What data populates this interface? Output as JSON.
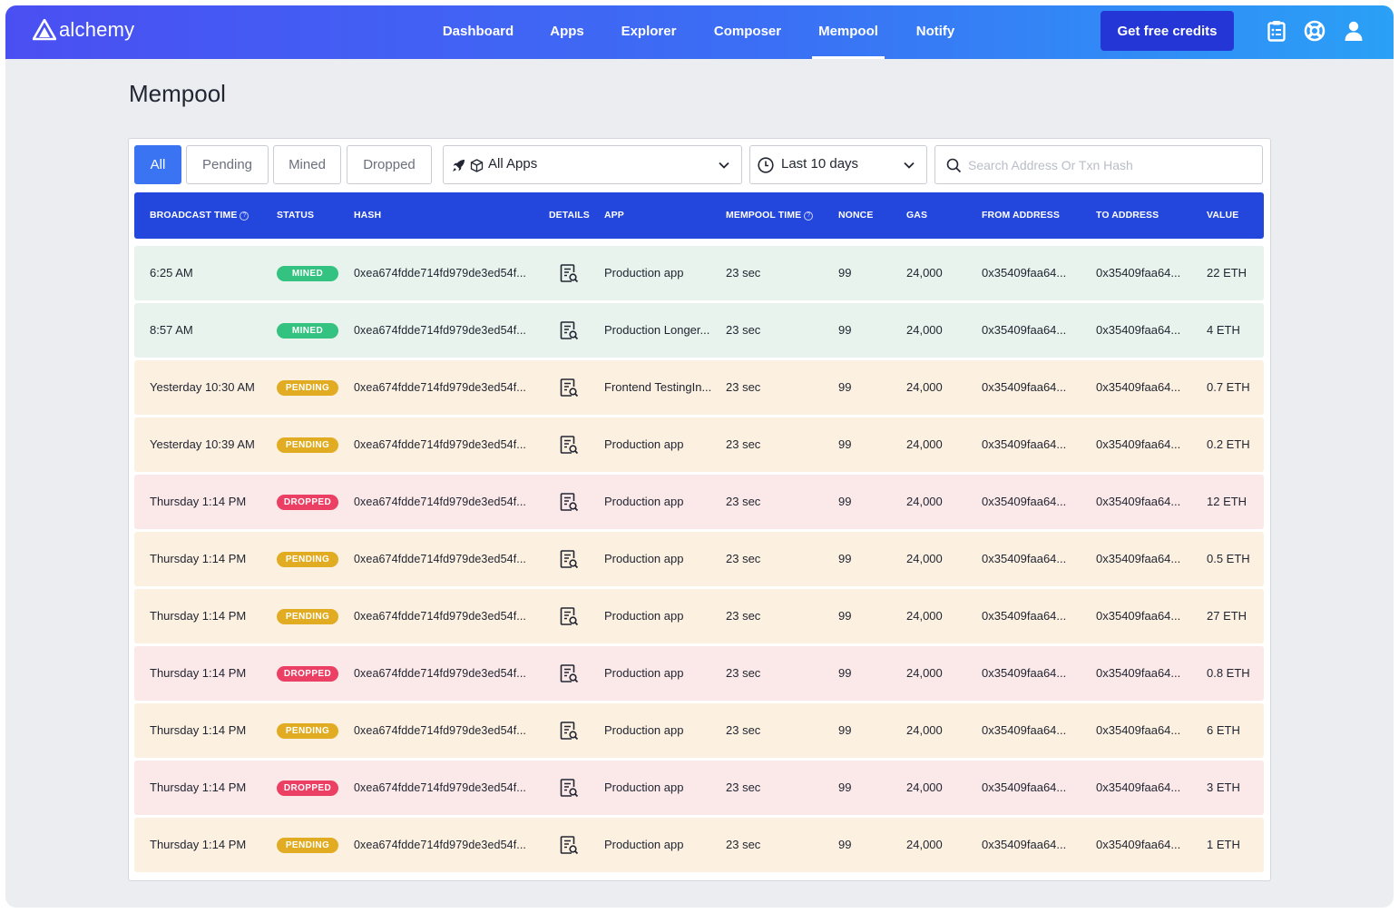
{
  "brand": {
    "name": "alchemy"
  },
  "nav": {
    "items": [
      {
        "label": "Dashboard"
      },
      {
        "label": "Apps"
      },
      {
        "label": "Explorer"
      },
      {
        "label": "Composer"
      },
      {
        "label": "Mempool",
        "active": true
      },
      {
        "label": "Notify"
      }
    ],
    "cta": "Get free credits",
    "icons": [
      "clipboard-icon",
      "lifebuoy-icon",
      "user-icon"
    ]
  },
  "page": {
    "title": "Mempool"
  },
  "filters": {
    "status_tabs": [
      {
        "label": "All",
        "active": true
      },
      {
        "label": "Pending"
      },
      {
        "label": "Mined"
      },
      {
        "label": "Dropped"
      }
    ],
    "app_select": "All Apps",
    "time_select": "Last 10 days",
    "search_placeholder": "Search Address Or Txn Hash"
  },
  "colors": {
    "header": "#2346dc",
    "mined": "#33c27f",
    "pending": "#e2ac22",
    "dropped": "#ec3f64"
  },
  "table": {
    "columns": [
      {
        "label": "BROADCAST TIME",
        "help": true
      },
      {
        "label": "STATUS"
      },
      {
        "label": "HASH"
      },
      {
        "label": "DETAILS"
      },
      {
        "label": "APP"
      },
      {
        "label": "MEMPOOL TIME",
        "help": true
      },
      {
        "label": "NONCE"
      },
      {
        "label": "GAS"
      },
      {
        "label": "FROM ADDRESS"
      },
      {
        "label": "TO ADDRESS"
      },
      {
        "label": "VALUE"
      }
    ],
    "rows": [
      {
        "time": "6:25 AM",
        "status": "MINED",
        "hash": "0xea674fdde714fd979de3ed54f...",
        "app": "Production app",
        "mempool_time": "23 sec",
        "nonce": "99",
        "gas": "24,000",
        "from": "0x35409faa64...",
        "to": "0x35409faa64...",
        "value": "22 ETH"
      },
      {
        "time": "8:57 AM",
        "status": "MINED",
        "hash": "0xea674fdde714fd979de3ed54f...",
        "app": "Production Longer...",
        "mempool_time": "23 sec",
        "nonce": "99",
        "gas": "24,000",
        "from": "0x35409faa64...",
        "to": "0x35409faa64...",
        "value": "4 ETH"
      },
      {
        "time": "Yesterday 10:30 AM",
        "status": "PENDING",
        "hash": "0xea674fdde714fd979de3ed54f...",
        "app": "Frontend TestingIn...",
        "mempool_time": "23 sec",
        "nonce": "99",
        "gas": "24,000",
        "from": "0x35409faa64...",
        "to": "0x35409faa64...",
        "value": "0.7 ETH"
      },
      {
        "time": "Yesterday 10:39 AM",
        "status": "PENDING",
        "hash": "0xea674fdde714fd979de3ed54f...",
        "app": "Production app",
        "mempool_time": "23 sec",
        "nonce": "99",
        "gas": "24,000",
        "from": "0x35409faa64...",
        "to": "0x35409faa64...",
        "value": "0.2 ETH"
      },
      {
        "time": "Thursday 1:14 PM",
        "status": "DROPPED",
        "hash": "0xea674fdde714fd979de3ed54f...",
        "app": "Production app",
        "mempool_time": "23 sec",
        "nonce": "99",
        "gas": "24,000",
        "from": "0x35409faa64...",
        "to": "0x35409faa64...",
        "value": "12 ETH"
      },
      {
        "time": "Thursday 1:14 PM",
        "status": "PENDING",
        "hash": "0xea674fdde714fd979de3ed54f...",
        "app": "Production app",
        "mempool_time": "23 sec",
        "nonce": "99",
        "gas": "24,000",
        "from": "0x35409faa64...",
        "to": "0x35409faa64...",
        "value": "0.5 ETH"
      },
      {
        "time": "Thursday 1:14 PM",
        "status": "PENDING",
        "hash": "0xea674fdde714fd979de3ed54f...",
        "app": "Production app",
        "mempool_time": "23 sec",
        "nonce": "99",
        "gas": "24,000",
        "from": "0x35409faa64...",
        "to": "0x35409faa64...",
        "value": "27 ETH"
      },
      {
        "time": "Thursday 1:14 PM",
        "status": "DROPPED",
        "hash": "0xea674fdde714fd979de3ed54f...",
        "app": "Production app",
        "mempool_time": "23 sec",
        "nonce": "99",
        "gas": "24,000",
        "from": "0x35409faa64...",
        "to": "0x35409faa64...",
        "value": "0.8 ETH"
      },
      {
        "time": "Thursday 1:14 PM",
        "status": "PENDING",
        "hash": "0xea674fdde714fd979de3ed54f...",
        "app": "Production app",
        "mempool_time": "23 sec",
        "nonce": "99",
        "gas": "24,000",
        "from": "0x35409faa64...",
        "to": "0x35409faa64...",
        "value": "6 ETH"
      },
      {
        "time": "Thursday 1:14 PM",
        "status": "DROPPED",
        "hash": "0xea674fdde714fd979de3ed54f...",
        "app": "Production app",
        "mempool_time": "23 sec",
        "nonce": "99",
        "gas": "24,000",
        "from": "0x35409faa64...",
        "to": "0x35409faa64...",
        "value": "3 ETH"
      },
      {
        "time": "Thursday 1:14 PM",
        "status": "PENDING",
        "hash": "0xea674fdde714fd979de3ed54f...",
        "app": "Production app",
        "mempool_time": "23 sec",
        "nonce": "99",
        "gas": "24,000",
        "from": "0x35409faa64...",
        "to": "0x35409faa64...",
        "value": "1 ETH"
      }
    ]
  }
}
